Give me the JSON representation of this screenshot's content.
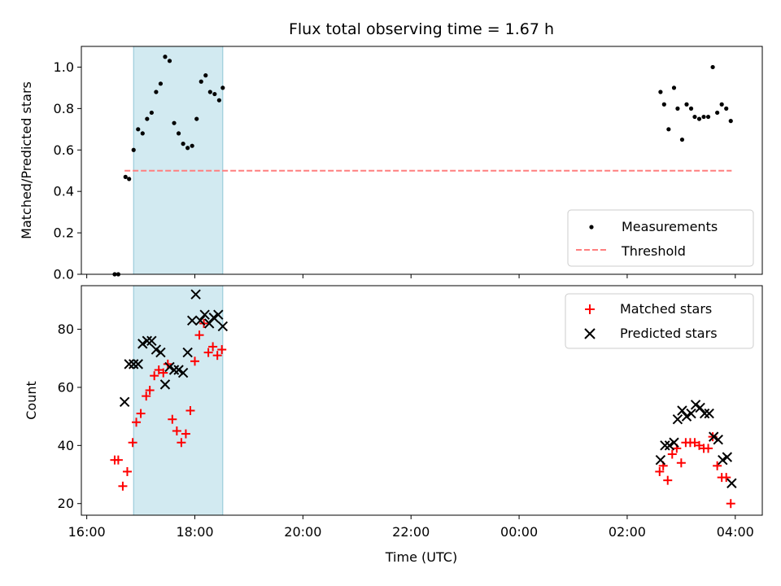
{
  "chart_data": {
    "title": "Flux total observing time = 1.67 h",
    "xlabel": "Time (UTC)",
    "x_unit": "datetime (UTC)",
    "xlim": [
      "16:00",
      "04:30 (+1 day)"
    ],
    "x_ticks": [
      "16:00",
      "18:00",
      "20:00",
      "22:00",
      "00:00",
      "02:00",
      "04:00"
    ],
    "highlight_span": {
      "x": [
        "16:52",
        "18:31"
      ],
      "color": "#add8e6"
    },
    "panels": [
      {
        "type": "scatter",
        "ylabel": "Matched/Predicted stars",
        "ylim": [
          0,
          1.1
        ],
        "yticks": [
          "0.0",
          "0.2",
          "0.4",
          "0.6",
          "0.8",
          "1.0"
        ],
        "legend_position": "lower-right",
        "series": [
          {
            "name": "Measurements",
            "color": "#000000",
            "marker": "dot",
            "points": [
              [
                "16:31",
                0.0
              ],
              [
                "16:35",
                0.0
              ],
              [
                "16:43",
                0.47
              ],
              [
                "16:47",
                0.46
              ],
              [
                "16:52",
                0.6
              ],
              [
                "16:57",
                0.7
              ],
              [
                "17:02",
                0.68
              ],
              [
                "17:07",
                0.75
              ],
              [
                "17:12",
                0.78
              ],
              [
                "17:17",
                0.88
              ],
              [
                "17:22",
                0.92
              ],
              [
                "17:27",
                1.05
              ],
              [
                "17:32",
                1.03
              ],
              [
                "17:37",
                0.73
              ],
              [
                "17:42",
                0.68
              ],
              [
                "17:47",
                0.63
              ],
              [
                "17:52",
                0.61
              ],
              [
                "17:57",
                0.62
              ],
              [
                "18:02",
                0.75
              ],
              [
                "18:07",
                0.93
              ],
              [
                "18:12",
                0.96
              ],
              [
                "18:17",
                0.88
              ],
              [
                "18:22",
                0.87
              ],
              [
                "18:27",
                0.84
              ],
              [
                "18:31",
                0.9
              ],
              [
                "02:37",
                0.88
              ],
              [
                "02:41",
                0.82
              ],
              [
                "02:46",
                0.7
              ],
              [
                "02:52",
                0.9
              ],
              [
                "02:56",
                0.8
              ],
              [
                "03:01",
                0.65
              ],
              [
                "03:06",
                0.82
              ],
              [
                "03:11",
                0.8
              ],
              [
                "03:15",
                0.76
              ],
              [
                "03:20",
                0.75
              ],
              [
                "03:25",
                0.76
              ],
              [
                "03:30",
                0.76
              ],
              [
                "03:35",
                1.0
              ],
              [
                "03:40",
                0.78
              ],
              [
                "03:45",
                0.82
              ],
              [
                "03:50",
                0.8
              ],
              [
                "03:55",
                0.74
              ]
            ]
          },
          {
            "name": "Threshold",
            "color": "#ff7f7f",
            "style": "dashed",
            "points": [
              [
                "16:42",
                0.5
              ],
              [
                "03:56",
                0.5
              ]
            ]
          }
        ]
      },
      {
        "type": "scatter",
        "ylabel": "Count",
        "ylim": [
          16,
          95
        ],
        "yticks": [
          "20",
          "40",
          "60",
          "80"
        ],
        "legend_position": "upper-right",
        "series": [
          {
            "name": "Matched stars",
            "color": "#ff0000",
            "marker": "plus",
            "points": [
              [
                "16:31",
                35
              ],
              [
                "16:35",
                35
              ],
              [
                "16:40",
                26
              ],
              [
                "16:45",
                31
              ],
              [
                "16:51",
                41
              ],
              [
                "16:55",
                48
              ],
              [
                "17:00",
                51
              ],
              [
                "17:06",
                57
              ],
              [
                "17:10",
                59
              ],
              [
                "17:15",
                64
              ],
              [
                "17:20",
                66
              ],
              [
                "17:25",
                65
              ],
              [
                "17:30",
                68
              ],
              [
                "17:35",
                49
              ],
              [
                "17:40",
                45
              ],
              [
                "17:45",
                41
              ],
              [
                "17:50",
                44
              ],
              [
                "17:55",
                52
              ],
              [
                "18:00",
                69
              ],
              [
                "18:05",
                78
              ],
              [
                "18:10",
                82
              ],
              [
                "18:15",
                72
              ],
              [
                "18:20",
                74
              ],
              [
                "18:25",
                71
              ],
              [
                "18:30",
                73
              ],
              [
                "02:36",
                31
              ],
              [
                "02:40",
                33
              ],
              [
                "02:45",
                28
              ],
              [
                "02:50",
                37
              ],
              [
                "02:55",
                39
              ],
              [
                "03:00",
                34
              ],
              [
                "03:05",
                41
              ],
              [
                "03:10",
                41
              ],
              [
                "03:15",
                41
              ],
              [
                "03:20",
                40
              ],
              [
                "03:25",
                39
              ],
              [
                "03:30",
                39
              ],
              [
                "03:35",
                43
              ],
              [
                "03:40",
                33
              ],
              [
                "03:45",
                29
              ],
              [
                "03:50",
                29
              ],
              [
                "03:55",
                20
              ]
            ]
          },
          {
            "name": "Predicted stars",
            "color": "#000000",
            "marker": "x",
            "points": [
              [
                "16:42",
                55
              ],
              [
                "16:47",
                68
              ],
              [
                "16:52",
                68
              ],
              [
                "16:57",
                68
              ],
              [
                "17:02",
                75
              ],
              [
                "17:07",
                76
              ],
              [
                "17:12",
                76
              ],
              [
                "17:17",
                73
              ],
              [
                "17:22",
                72
              ],
              [
                "17:27",
                61
              ],
              [
                "17:32",
                67
              ],
              [
                "17:37",
                66
              ],
              [
                "17:42",
                66
              ],
              [
                "17:47",
                65
              ],
              [
                "17:52",
                72
              ],
              [
                "17:57",
                83
              ],
              [
                "18:01",
                92
              ],
              [
                "18:06",
                83
              ],
              [
                "18:11",
                85
              ],
              [
                "18:16",
                82
              ],
              [
                "18:21",
                84
              ],
              [
                "18:26",
                85
              ],
              [
                "18:31",
                81
              ],
              [
                "02:37",
                35
              ],
              [
                "02:42",
                40
              ],
              [
                "02:47",
                40
              ],
              [
                "02:52",
                41
              ],
              [
                "02:56",
                49
              ],
              [
                "03:01",
                52
              ],
              [
                "03:06",
                50
              ],
              [
                "03:11",
                51
              ],
              [
                "03:16",
                54
              ],
              [
                "03:21",
                53
              ],
              [
                "03:26",
                51
              ],
              [
                "03:31",
                51
              ],
              [
                "03:36",
                43
              ],
              [
                "03:41",
                42
              ],
              [
                "03:46",
                35
              ],
              [
                "03:51",
                36
              ],
              [
                "03:56",
                27
              ]
            ]
          }
        ]
      }
    ]
  }
}
